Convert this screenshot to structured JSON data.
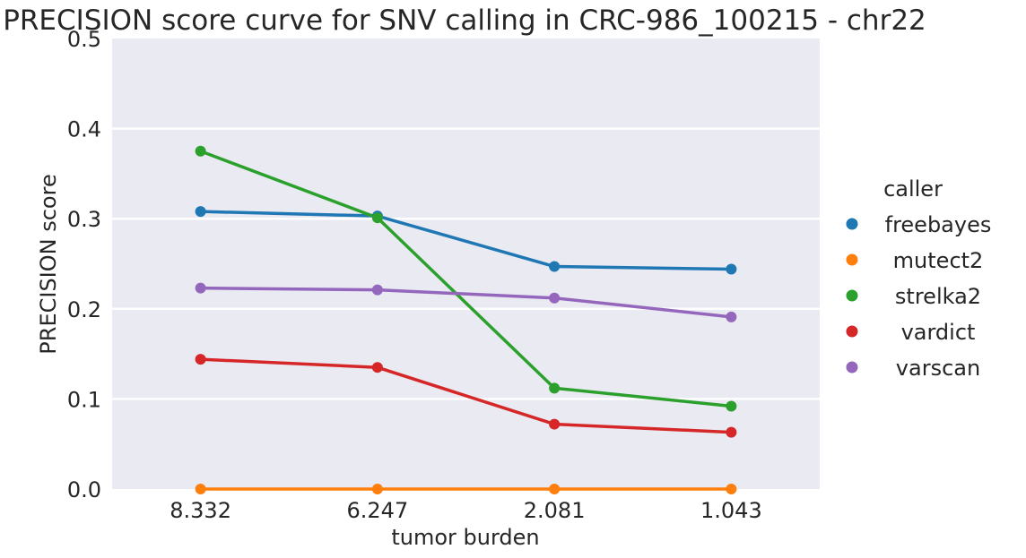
{
  "chart_data": {
    "type": "line",
    "title": "PRECISION score curve for SNV calling in CRC-986_100215 - chr22",
    "xlabel": "tumor burden",
    "ylabel": "PRECISION score",
    "categories": [
      "8.332",
      "6.247",
      "2.081",
      "1.043"
    ],
    "ylim": [
      0,
      0.5
    ],
    "yticks": [
      "0.0",
      "0.1",
      "0.2",
      "0.3",
      "0.4",
      "0.5"
    ],
    "grid": true,
    "legend": {
      "title": "caller",
      "placement": "right"
    },
    "series": [
      {
        "name": "freebayes",
        "color": "#1f77b4",
        "values": [
          0.308,
          0.303,
          0.247,
          0.244
        ]
      },
      {
        "name": "mutect2",
        "color": "#ff7f0e",
        "values": [
          0.0,
          0.0,
          0.0,
          0.0
        ]
      },
      {
        "name": "strelka2",
        "color": "#2ca02c",
        "values": [
          0.375,
          0.301,
          0.112,
          0.092
        ]
      },
      {
        "name": "vardict",
        "color": "#d62728",
        "values": [
          0.144,
          0.135,
          0.072,
          0.063
        ]
      },
      {
        "name": "varscan",
        "color": "#9467bd",
        "values": [
          0.223,
          0.221,
          0.212,
          0.191
        ]
      }
    ]
  }
}
